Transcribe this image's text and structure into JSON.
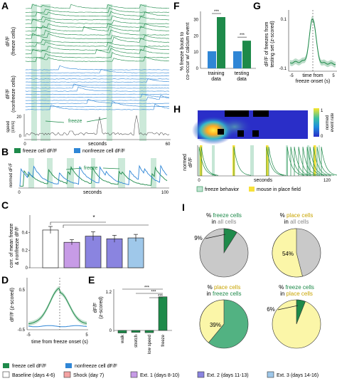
{
  "colors": {
    "freeze": "#1e8a4a",
    "nonfreeze": "#2f86d6",
    "shade": "#bfe3d0",
    "baseline": "#ffffff",
    "shock": "#f4a3a3",
    "ext1": "#c79be6",
    "ext2": "#8a84e0",
    "ext3": "#9fc8ea",
    "placefield": "#f7e13a",
    "pie_grey": "#c9c9c9",
    "pie_yellow": "#fbf6a8"
  },
  "panels": {
    "A": {
      "letter": "A",
      "ylabel_freeze": "dF/F\n(freeze cells)",
      "ylabel_nonfreeze": "dF/F\n(nonfreeze cells)",
      "ylabel_speed": "speed\n(cm/s)",
      "freeze_label": "freeze",
      "xlabel": "seconds",
      "x_ticks": [
        "0",
        "60"
      ],
      "speed_ticks": [
        "20",
        "0"
      ]
    },
    "B": {
      "letter": "B",
      "legend_freeze": "freeze cell dF/F",
      "legend_nonfreeze": "nonfreeze cell dF/F",
      "ylabel": "normed dF/F",
      "freeze_label": "freeze",
      "xlabel": "seconds",
      "x_ticks": [
        "0",
        "100"
      ]
    },
    "C": {
      "letter": "C",
      "ylabel": "corr. of mean freeze\n& nonfreeze dF/F",
      "y_ticks": [
        "0.4",
        "0.2",
        "0"
      ],
      "sig": "*"
    },
    "D": {
      "letter": "D",
      "ylabel": "dF/F (z-scored)",
      "y_ticks": [
        "0.5",
        "-0.5"
      ],
      "x_ticks": [
        "-5",
        "5"
      ],
      "xlabel": "time from freeze onset (s)"
    },
    "E": {
      "letter": "E",
      "ylabel": "dF/F\n(z-scored)",
      "y_ticks": [
        "1.2",
        "0"
      ],
      "sig": [
        "***",
        "***",
        "***"
      ]
    },
    "F": {
      "letter": "F",
      "ylabel": "% freeze bouts to\nco-occur w/ calcium event",
      "y_ticks": [
        "30",
        "20",
        "10",
        "0"
      ],
      "sig": [
        "***",
        "***"
      ]
    },
    "G": {
      "letter": "G",
      "ylabel": "dF/F of freezes from\ntesting set (z-scored)",
      "y_ticks": [
        "0.1",
        "-0.1"
      ],
      "x_ticks": [
        "-5",
        "5"
      ],
      "xlabel_1": "time from",
      "xlabel_2": "freeze onset (s)"
    },
    "H": {
      "letter": "H",
      "colorbar_label": "normed\nevent rate",
      "cb_ticks": [
        "1",
        "0"
      ],
      "ylabel": "normed\ndF/F",
      "xlabel": "seconds",
      "x_ticks": [
        "0",
        "120"
      ],
      "legend_freeze": "freeze behavior",
      "legend_place": "mouse in place field"
    },
    "I": {
      "letter": "I",
      "pies": [
        {
          "t1": "% ",
          "t1c": "freeze cells",
          "t2": "in ",
          "t2c": "all cells",
          "pct": "9%"
        },
        {
          "t1": "% ",
          "t1c": "place cells",
          "t2": "in ",
          "t2c": "all cells",
          "pct": "54%"
        },
        {
          "t1": "% ",
          "t1c": "place cells",
          "t2": "in ",
          "t2c": "freeze cells",
          "pct": "39%"
        },
        {
          "t1": "% ",
          "t1c": "freeze cells",
          "t2": "in ",
          "t2c": "place cells",
          "pct": "6%"
        }
      ]
    }
  },
  "chart_data": [
    {
      "panel": "C",
      "type": "bar",
      "categories": [
        "Baseline (days 4-6)",
        "Shock (day 7)",
        "Ext. 1 (days 8-10)",
        "Ext. 2 (days 11-13)",
        "Ext. 3 (days 14-16)"
      ],
      "values": [
        0.43,
        0.29,
        0.36,
        0.33,
        0.34
      ],
      "errors": [
        0.04,
        0.03,
        0.05,
        0.04,
        0.04
      ],
      "ylim": [
        0,
        0.6
      ]
    },
    {
      "panel": "E",
      "type": "bar",
      "categories": [
        "walk",
        "stretch",
        "low speed",
        "freeze"
      ],
      "values": [
        -0.08,
        -0.06,
        -0.07,
        1.05
      ],
      "ylim": [
        -0.15,
        1.3
      ]
    },
    {
      "panel": "F",
      "type": "bar",
      "categories": [
        "training data",
        "testing data"
      ],
      "series": [
        {
          "values": [
            10.5,
            10.5
          ]
        },
        {
          "values": [
            31.5,
            17.0
          ]
        }
      ],
      "ylim": [
        0,
        35
      ]
    },
    {
      "panel": "I",
      "type": "pie",
      "values": [
        9,
        54,
        39,
        6
      ]
    }
  ],
  "legend": {
    "freeze": "freeze cell dF/F",
    "nonfreeze": "nonfreeze cell dF/F",
    "baseline": "Baseline (days 4-6)",
    "shock": "Shock (day 7)",
    "ext1": "Ext. 1 (days 8-10)",
    "ext2": "Ext. 2 (days 11-13)",
    "ext3": "Ext. 3 (days 14-16)"
  }
}
